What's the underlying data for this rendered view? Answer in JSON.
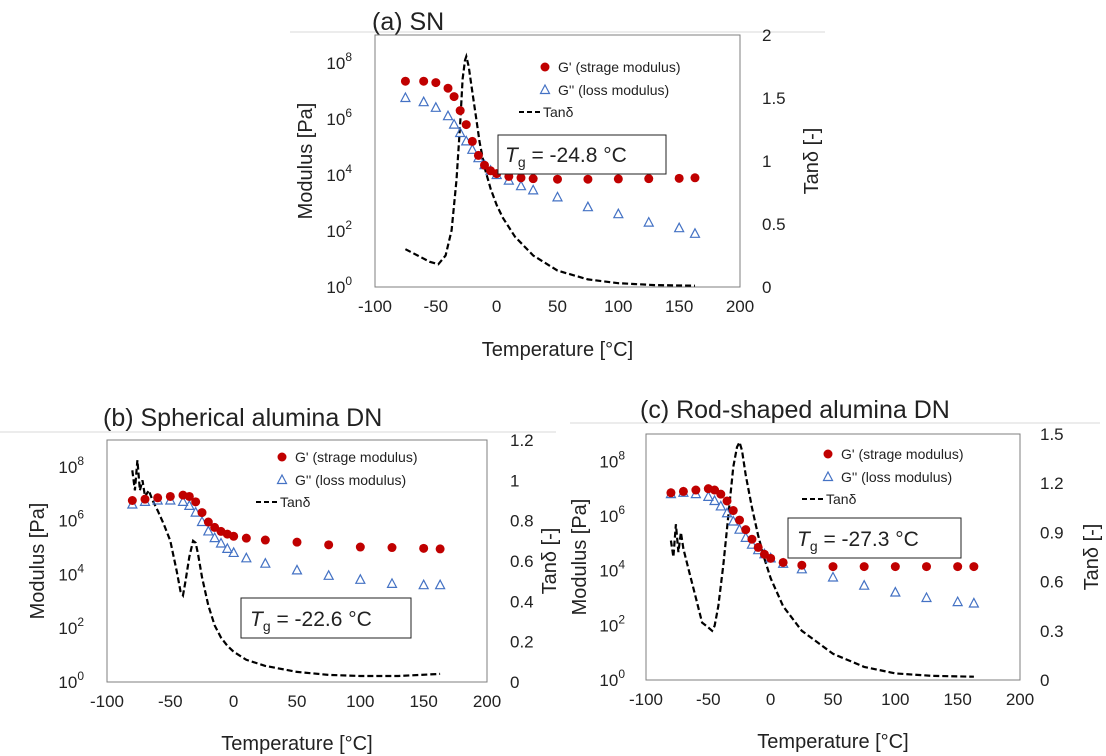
{
  "colors": {
    "storage": "#c00000",
    "loss": "#4472c4",
    "tan": "#000000"
  },
  "chart_data": [
    {
      "type": "scatter",
      "panel_title": "(a) SN",
      "xlabel": "Temperature [°C]",
      "ylabel": "Modulus [Pa]",
      "y2label": "Tanδ [-]",
      "xlim": [
        -100,
        200
      ],
      "xticks": [
        "-100",
        "-50",
        "0",
        "50",
        "100",
        "150",
        "200"
      ],
      "ylim_log10": [
        0,
        9
      ],
      "yticks": [
        {
          "base": "10",
          "exp": "0",
          "log": 0
        },
        {
          "base": "10",
          "exp": "2",
          "log": 2
        },
        {
          "base": "10",
          "exp": "4",
          "log": 4
        },
        {
          "base": "10",
          "exp": "6",
          "log": 6
        },
        {
          "base": "10",
          "exp": "8",
          "log": 8
        }
      ],
      "y2lim": [
        0,
        2
      ],
      "y2ticks": [
        "0",
        "0.5",
        "1",
        "1.5",
        "2"
      ],
      "tg": {
        "symbol": "T",
        "sub": "g",
        "text": " = -24.8 °C"
      },
      "legend": {
        "storage": "G' (strage modulus)",
        "loss": "G'' (loss modulus)",
        "tan": "Tanδ"
      },
      "series": [
        {
          "name": "G' (strage modulus)",
          "x": [
            -75,
            -60,
            -50,
            -40,
            -35,
            -30,
            -25,
            -20,
            -15,
            -10,
            -5,
            0,
            10,
            20,
            30,
            50,
            75,
            100,
            125,
            150,
            163
          ],
          "y_log10": [
            7.35,
            7.35,
            7.3,
            7.1,
            6.8,
            6.3,
            5.8,
            5.2,
            4.7,
            4.35,
            4.15,
            4.05,
            3.95,
            3.9,
            3.87,
            3.85,
            3.85,
            3.86,
            3.87,
            3.88,
            3.9
          ]
        },
        {
          "name": "G'' (loss modulus)",
          "x": [
            -75,
            -60,
            -50,
            -40,
            -35,
            -30,
            -25,
            -20,
            -15,
            -10,
            -5,
            0,
            10,
            20,
            30,
            50,
            75,
            100,
            125,
            150,
            163
          ],
          "y_log10": [
            6.75,
            6.6,
            6.4,
            6.1,
            5.8,
            5.5,
            5.2,
            4.9,
            4.6,
            4.35,
            4.15,
            4.0,
            3.8,
            3.6,
            3.45,
            3.2,
            2.85,
            2.6,
            2.3,
            2.1,
            1.9
          ]
        },
        {
          "name": "Tanδ",
          "x": [
            -75,
            -65,
            -55,
            -48,
            -42,
            -37,
            -33,
            -30,
            -28,
            -26,
            -25,
            -23,
            -20,
            -17,
            -14,
            -10,
            -5,
            0,
            5,
            15,
            30,
            50,
            75,
            100,
            130,
            163
          ],
          "y": [
            0.3,
            0.25,
            0.2,
            0.18,
            0.25,
            0.45,
            0.85,
            1.3,
            1.65,
            1.8,
            1.83,
            1.75,
            1.55,
            1.35,
            1.15,
            0.95,
            0.78,
            0.65,
            0.55,
            0.4,
            0.25,
            0.13,
            0.06,
            0.03,
            0.015,
            0.01
          ]
        }
      ]
    },
    {
      "type": "scatter",
      "panel_title": "(b) Spherical alumina DN",
      "xlabel": "Temperature [°C]",
      "ylabel": "Modulus [Pa]",
      "y2label": "Tanδ [-]",
      "xlim": [
        -100,
        200
      ],
      "xticks": [
        "-100",
        "-50",
        "0",
        "50",
        "100",
        "150",
        "200"
      ],
      "ylim_log10": [
        0,
        9
      ],
      "yticks": [
        {
          "base": "10",
          "exp": "0",
          "log": 0
        },
        {
          "base": "10",
          "exp": "2",
          "log": 2
        },
        {
          "base": "10",
          "exp": "4",
          "log": 4
        },
        {
          "base": "10",
          "exp": "6",
          "log": 6
        },
        {
          "base": "10",
          "exp": "8",
          "log": 8
        }
      ],
      "y2lim": [
        0,
        1.2
      ],
      "y2ticks": [
        "0",
        "0.2",
        "0.4",
        "0.6",
        "0.8",
        "1",
        "1.2"
      ],
      "tg": {
        "symbol": "T",
        "sub": "g",
        "text": " = -22.6 °C"
      },
      "legend": {
        "storage": "G' (strage modulus)",
        "loss": "G'' (loss modulus)",
        "tan": "Tanδ"
      },
      "series": [
        {
          "name": "G' (strage modulus)",
          "x": [
            -80,
            -70,
            -60,
            -50,
            -40,
            -35,
            -30,
            -25,
            -20,
            -15,
            -10,
            -5,
            0,
            10,
            25,
            50,
            75,
            100,
            125,
            150,
            163
          ],
          "y_log10": [
            6.75,
            6.8,
            6.85,
            6.9,
            6.95,
            6.9,
            6.7,
            6.3,
            5.95,
            5.75,
            5.6,
            5.5,
            5.42,
            5.35,
            5.28,
            5.2,
            5.1,
            5.02,
            5.0,
            4.97,
            4.95
          ]
        },
        {
          "name": "G'' (loss modulus)",
          "x": [
            -80,
            -70,
            -60,
            -50,
            -40,
            -35,
            -30,
            -25,
            -20,
            -15,
            -10,
            -5,
            0,
            10,
            25,
            50,
            75,
            100,
            125,
            150,
            163
          ],
          "y_log10": [
            6.6,
            6.7,
            6.75,
            6.75,
            6.7,
            6.55,
            6.3,
            5.95,
            5.6,
            5.35,
            5.15,
            4.95,
            4.8,
            4.6,
            4.4,
            4.15,
            3.95,
            3.8,
            3.65,
            3.6,
            3.6
          ]
        },
        {
          "name": "Tanδ",
          "x": [
            -80,
            -78,
            -76,
            -74,
            -72,
            -70,
            -67,
            -64,
            -60,
            -55,
            -50,
            -45,
            -42,
            -40,
            -38,
            -35,
            -32,
            -30,
            -28,
            -25,
            -20,
            -15,
            -10,
            -5,
            0,
            10,
            25,
            50,
            75,
            100,
            130,
            163
          ],
          "y": [
            1.05,
            0.95,
            1.1,
            0.95,
            1.0,
            0.92,
            0.95,
            0.9,
            0.85,
            0.78,
            0.7,
            0.55,
            0.45,
            0.43,
            0.5,
            0.62,
            0.7,
            0.69,
            0.63,
            0.52,
            0.38,
            0.28,
            0.22,
            0.18,
            0.15,
            0.11,
            0.08,
            0.05,
            0.035,
            0.03,
            0.03,
            0.04
          ]
        }
      ]
    },
    {
      "type": "scatter",
      "panel_title": "(c) Rod-shaped alumina DN",
      "xlabel": "Temperature [°C]",
      "ylabel": "Modulus [Pa]",
      "y2label": "Tanδ [-]",
      "xlim": [
        -100,
        200
      ],
      "xticks": [
        "-100",
        "-50",
        "0",
        "50",
        "100",
        "150",
        "200"
      ],
      "ylim_log10": [
        0,
        9
      ],
      "yticks": [
        {
          "base": "10",
          "exp": "0",
          "log": 0
        },
        {
          "base": "10",
          "exp": "2",
          "log": 2
        },
        {
          "base": "10",
          "exp": "4",
          "log": 4
        },
        {
          "base": "10",
          "exp": "6",
          "log": 6
        },
        {
          "base": "10",
          "exp": "8",
          "log": 8
        }
      ],
      "y2lim": [
        0,
        1.5
      ],
      "y2ticks": [
        "0",
        "0.3",
        "0.6",
        "0.9",
        "1.2",
        "1.5"
      ],
      "tg": {
        "symbol": "T",
        "sub": "g",
        "text": " = -27.3 °C"
      },
      "legend": {
        "storage": "G' (strage modulus)",
        "loss": "G'' (loss modulus)",
        "tan": "Tanδ"
      },
      "series": [
        {
          "name": "G' (strage modulus)",
          "x": [
            -80,
            -70,
            -60,
            -50,
            -45,
            -40,
            -35,
            -30,
            -25,
            -20,
            -15,
            -10,
            -5,
            0,
            10,
            25,
            50,
            75,
            100,
            125,
            150,
            163
          ],
          "y_log10": [
            6.85,
            6.9,
            6.95,
            7.0,
            6.95,
            6.8,
            6.55,
            6.2,
            5.85,
            5.5,
            5.15,
            4.85,
            4.6,
            4.45,
            4.3,
            4.2,
            4.15,
            4.15,
            4.15,
            4.15,
            4.15,
            4.15
          ]
        },
        {
          "name": "G'' (loss modulus)",
          "x": [
            -80,
            -70,
            -60,
            -50,
            -45,
            -40,
            -35,
            -30,
            -25,
            -20,
            -15,
            -10,
            -5,
            0,
            10,
            25,
            50,
            75,
            100,
            125,
            150,
            163
          ],
          "y_log10": [
            6.8,
            6.85,
            6.8,
            6.7,
            6.55,
            6.35,
            6.1,
            5.8,
            5.5,
            5.2,
            4.95,
            4.75,
            4.6,
            4.45,
            4.25,
            4.05,
            3.75,
            3.45,
            3.2,
            3.0,
            2.85,
            2.8
          ]
        },
        {
          "name": "Tanδ",
          "x": [
            -80,
            -78,
            -76,
            -74,
            -72,
            -70,
            -65,
            -60,
            -55,
            -50,
            -47,
            -45,
            -42,
            -38,
            -34,
            -30,
            -27,
            -25,
            -23,
            -20,
            -15,
            -10,
            -5,
            0,
            10,
            25,
            50,
            75,
            100,
            130,
            163
          ],
          "y": [
            0.85,
            0.75,
            0.95,
            0.78,
            0.9,
            0.8,
            0.65,
            0.5,
            0.35,
            0.32,
            0.3,
            0.33,
            0.45,
            0.7,
            1.0,
            1.3,
            1.42,
            1.45,
            1.4,
            1.25,
            1.05,
            0.88,
            0.74,
            0.62,
            0.45,
            0.3,
            0.16,
            0.08,
            0.04,
            0.025,
            0.02
          ]
        }
      ]
    }
  ]
}
